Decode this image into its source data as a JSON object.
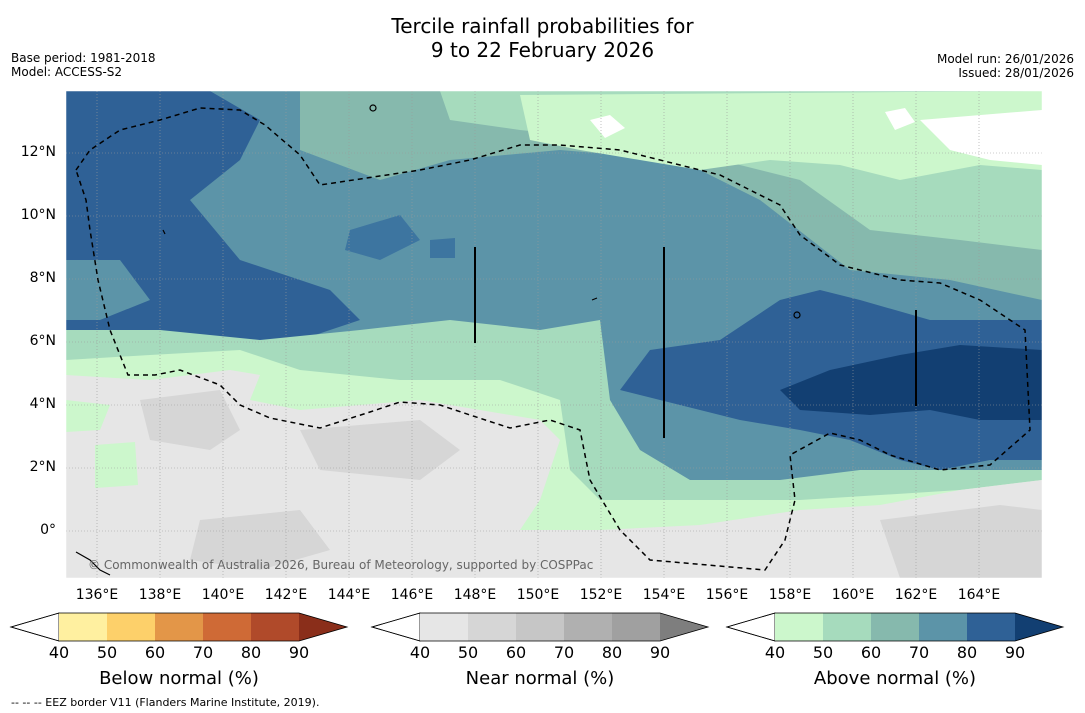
{
  "title": {
    "line1": "Tercile rainfall probabilities for",
    "line2": "9 to 22 February 2026"
  },
  "meta": {
    "base_period": "Base period: 1981-2018",
    "model": "Model: ACCESS-S2",
    "model_run": "Model run: 26/01/2026",
    "issued": "Issued: 28/01/2026"
  },
  "map": {
    "lat_labels": [
      "12°N",
      "10°N",
      "8°N",
      "6°N",
      "4°N",
      "2°N",
      "0°"
    ],
    "lon_labels": [
      "136°E",
      "138°E",
      "140°E",
      "142°E",
      "144°E",
      "146°E",
      "148°E",
      "150°E",
      "152°E",
      "154°E",
      "156°E",
      "158°E",
      "160°E",
      "162°E",
      "164°E"
    ],
    "copyright": "© Commonwealth of Australia 2026, Bureau of Meteorology, supported by COSPPac"
  },
  "legend": {
    "ticks": [
      "40",
      "50",
      "60",
      "70",
      "80",
      "90"
    ],
    "below": {
      "title": "Below normal (%)",
      "colors": [
        "#fff0a0",
        "#fdd06a",
        "#e39648",
        "#cf6a36",
        "#b04a2a",
        "#8a2e1a"
      ]
    },
    "near": {
      "title": "Near normal (%)",
      "colors": [
        "#e6e6e6",
        "#d6d6d6",
        "#c6c6c6",
        "#b0b0b0",
        "#a0a0a0",
        "#7e7e7e"
      ]
    },
    "above": {
      "title": "Above normal (%)",
      "colors": [
        "#ccf7cc",
        "#a6dbbd",
        "#86b9ad",
        "#5c94a8",
        "#2f6196",
        "#123f72"
      ]
    }
  },
  "footnote": "--  --  -- EEZ border V11 (Flanders Marine Institute, 2019)."
}
